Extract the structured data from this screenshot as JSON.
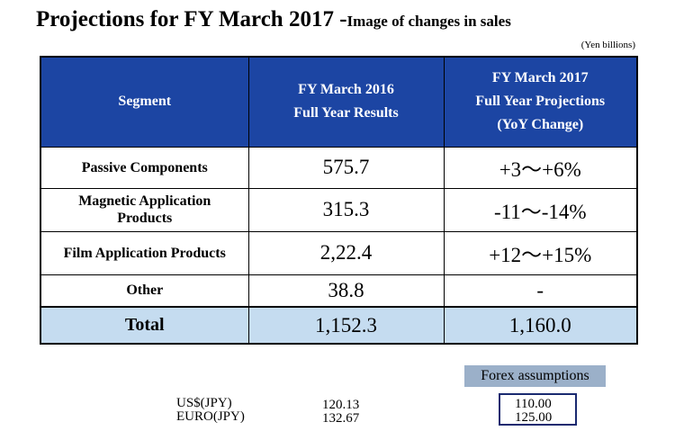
{
  "title": {
    "main": "Projections for FY March 2017 -",
    "sub": "Image of changes in sales"
  },
  "units": "(Yen billions)",
  "table": {
    "headers": {
      "segment": "Segment",
      "prev_line1": "FY March 2016",
      "prev_line2": "Full Year Results",
      "proj_line1": "FY March 2017",
      "proj_line2": "Full Year Projections",
      "proj_line3": "(YoY Change)"
    },
    "rows": [
      {
        "segment_line1": "Passive Components",
        "segment_line2": "",
        "result": "575.7",
        "projection": "+3～+6%"
      },
      {
        "segment_line1": "Magnetic Application",
        "segment_line2": "Products",
        "result": "315.3",
        "projection": "-11～-14%"
      },
      {
        "segment_line1": "Film Application Products",
        "segment_line2": "",
        "result": "2,22.4",
        "projection": "+12～+15%"
      },
      {
        "segment_line1": "Other",
        "segment_line2": "",
        "result": "38.8",
        "projection": "-"
      }
    ],
    "total": {
      "segment": "Total",
      "result": "1,152.3",
      "projection": "1,160.0"
    }
  },
  "forex": {
    "label": "Forex assumptions",
    "rows": [
      {
        "currency": "US$(JPY)",
        "prev": "120.13",
        "proj": "110.00"
      },
      {
        "currency": "EURO(JPY)",
        "prev": "132.67",
        "proj": "125.00"
      }
    ]
  },
  "colors": {
    "header_bg": "#1c45a3",
    "total_bg": "#c5dcf0",
    "forex_label_bg": "#9bb0c9",
    "forex_box_border": "#1a2a70"
  }
}
